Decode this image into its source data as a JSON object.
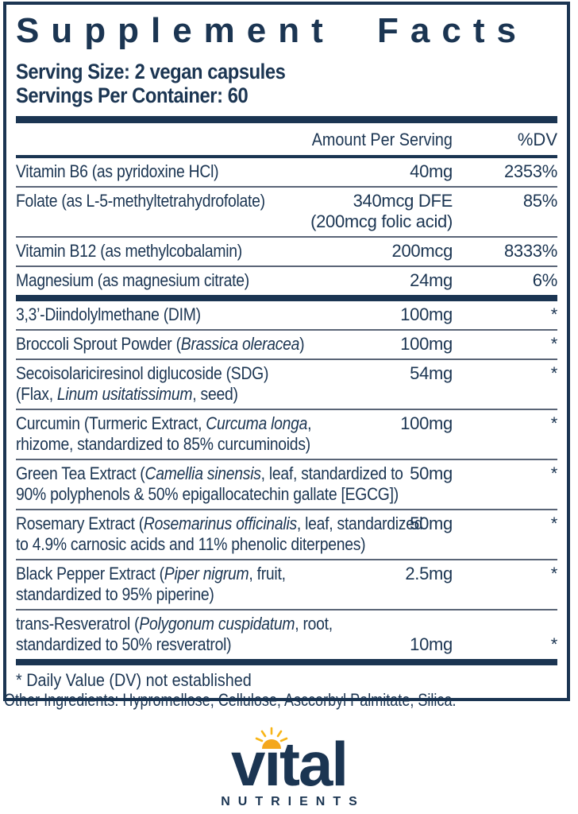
{
  "colors": {
    "navy": "#1b3552",
    "rule_gray": "#5a6577",
    "sun": "#f4a71d",
    "sun_rays": "#f8b517"
  },
  "label": {
    "title": "Supplement Facts",
    "serving_size": "Serving Size: 2 vegan capsules",
    "servings_per_container": "Servings Per Container: 60",
    "columns": {
      "amount": "Amount Per Serving",
      "dv": "%DV"
    },
    "sections": [
      {
        "rows": [
          {
            "name_lines": [
              [
                {
                  "text": "Vitamin B6 (as pyridoxine HCl)",
                  "italic": false
                }
              ]
            ],
            "amount_lines": [
              "40mg"
            ],
            "dv": "2353%"
          },
          {
            "name_lines": [
              [
                {
                  "text": "Folate (as L-5-methyltetrahydrofolate)",
                  "italic": false
                }
              ]
            ],
            "amount_lines": [
              "340mcg DFE",
              "(200mcg folic acid)"
            ],
            "dv": "85%"
          },
          {
            "name_lines": [
              [
                {
                  "text": "Vitamin B12 (as methylcobalamin)",
                  "italic": false
                }
              ]
            ],
            "amount_lines": [
              "200mcg"
            ],
            "dv": "8333%"
          },
          {
            "name_lines": [
              [
                {
                  "text": "Magnesium (as magnesium citrate)",
                  "italic": false
                }
              ]
            ],
            "amount_lines": [
              "24mg"
            ],
            "dv": "6%"
          }
        ]
      },
      {
        "rows": [
          {
            "name_lines": [
              [
                {
                  "text": "3,3’-Diindolylmethane (DIM)",
                  "italic": false
                }
              ]
            ],
            "amount_lines": [
              "100mg"
            ],
            "dv": "*"
          },
          {
            "name_lines": [
              [
                {
                  "text": "Broccoli Sprout Powder (",
                  "italic": false
                },
                {
                  "text": "Brassica oleracea",
                  "italic": true
                },
                {
                  "text": ")",
                  "italic": false
                }
              ]
            ],
            "amount_lines": [
              "100mg"
            ],
            "dv": "*"
          },
          {
            "name_lines": [
              [
                {
                  "text": "Secoisolariciresinol diglucoside (SDG)",
                  "italic": false
                }
              ],
              [
                {
                  "text": "(Flax, ",
                  "italic": false
                },
                {
                  "text": "Linum usitatissimum",
                  "italic": true
                },
                {
                  "text": ", seed)",
                  "italic": false
                }
              ]
            ],
            "amount_lines": [
              "54mg"
            ],
            "dv": "*"
          },
          {
            "name_lines": [
              [
                {
                  "text": "Curcumin (Turmeric Extract, ",
                  "italic": false
                },
                {
                  "text": "Curcuma longa",
                  "italic": true
                },
                {
                  "text": ",",
                  "italic": false
                }
              ],
              [
                {
                  "text": "rhizome, standardized to 85% curcuminoids)",
                  "italic": false
                }
              ]
            ],
            "amount_lines": [
              "100mg"
            ],
            "dv": "*"
          },
          {
            "name_lines": [
              [
                {
                  "text": "Green Tea Extract (",
                  "italic": false
                },
                {
                  "text": "Camellia sinensis",
                  "italic": true
                },
                {
                  "text": ", leaf, standardized to",
                  "italic": false
                }
              ],
              [
                {
                  "text": "90% polyphenols & 50% epigallocatechin gallate [EGCG])",
                  "italic": false
                }
              ]
            ],
            "amount_lines": [
              "50mg"
            ],
            "dv": "*"
          },
          {
            "name_lines": [
              [
                {
                  "text": "Rosemary Extract (",
                  "italic": false
                },
                {
                  "text": "Rosemarinus officinalis",
                  "italic": true
                },
                {
                  "text": ", leaf, standardized",
                  "italic": false
                }
              ],
              [
                {
                  "text": "to 4.9% carnosic acids and 11% phenolic diterpenes)",
                  "italic": false
                }
              ]
            ],
            "amount_lines": [
              "50mg"
            ],
            "dv": "*"
          },
          {
            "name_lines": [
              [
                {
                  "text": "Black Pepper Extract (",
                  "italic": false
                },
                {
                  "text": "Piper nigrum",
                  "italic": true
                },
                {
                  "text": ", fruit,",
                  "italic": false
                }
              ],
              [
                {
                  "text": "standardized to 95% piperine)",
                  "italic": false
                }
              ]
            ],
            "amount_lines": [
              "2.5mg"
            ],
            "dv": "*"
          },
          {
            "name_lines": [
              [
                {
                  "text": "trans-Resveratrol (",
                  "italic": false
                },
                {
                  "text": "Polygonum cuspidatum",
                  "italic": true
                },
                {
                  "text": ", root,",
                  "italic": false
                }
              ],
              [
                {
                  "text": "standardized to 50% resveratrol)",
                  "italic": false
                }
              ]
            ],
            "amount_lines": [
              "10mg"
            ],
            "dv": "*",
            "amount_align": "bottom"
          }
        ]
      }
    ],
    "footnote": "* Daily Value (DV) not established"
  },
  "other_ingredients": "Other Ingredients: Hypromellose, Cellulose, Asccorbyl Palmitate, Silica.",
  "logo": {
    "brand": "vital",
    "subtitle": "NUTRIENTS",
    "icon": "sun-icon"
  }
}
